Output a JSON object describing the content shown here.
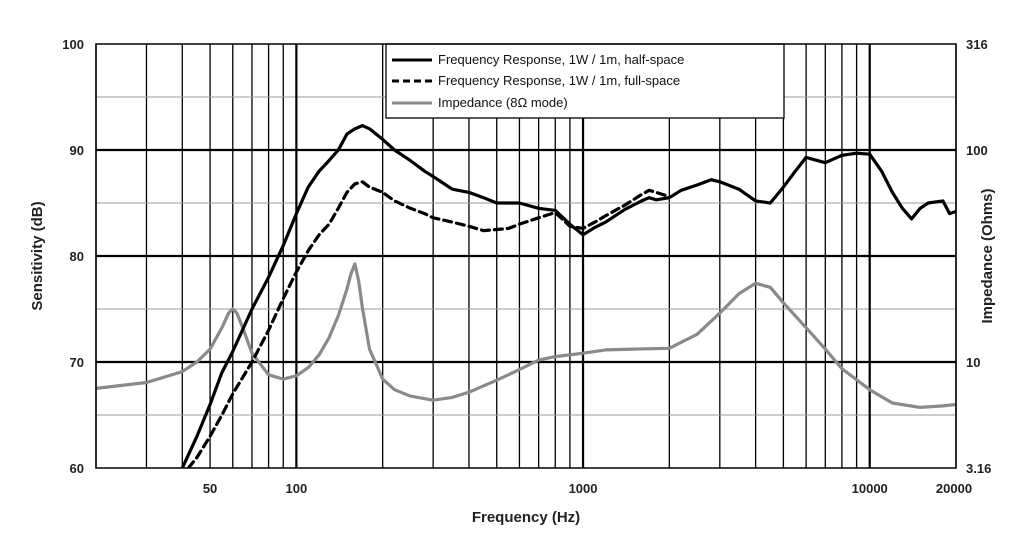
{
  "chart_data": {
    "type": "line",
    "xlabel": "Frequency (Hz)",
    "ylabel": "Sensitivity (dB)",
    "y2label": "Impedance (Ohms)",
    "xscale": "log",
    "xlim": [
      20,
      20000
    ],
    "ylim": [
      60,
      100
    ],
    "y2scale": "log",
    "y2lim": [
      3.16,
      316
    ],
    "grid": true,
    "legend_position": "top-center",
    "x_ticks": [
      "50",
      "100",
      "1000",
      "10000",
      "20000"
    ],
    "x_tick_values": [
      50,
      100,
      1000,
      10000,
      20000
    ],
    "y_ticks": [
      "60",
      "70",
      "80",
      "90",
      "100"
    ],
    "y_tick_values": [
      60,
      70,
      80,
      90,
      100
    ],
    "y2_ticks": [
      "3.16",
      "10",
      "100",
      "316"
    ],
    "y2_tick_values": [
      3.16,
      10,
      100,
      316
    ],
    "series": [
      {
        "name": "Frequency Response, 1W / 1m, half-space",
        "axis": "left",
        "style": "solid",
        "color": "#000000",
        "x": [
          40,
          45,
          50,
          55,
          60,
          70,
          80,
          90,
          100,
          110,
          120,
          130,
          140,
          150,
          160,
          170,
          180,
          200,
          220,
          250,
          280,
          300,
          350,
          400,
          450,
          500,
          550,
          600,
          700,
          800,
          900,
          1000,
          1100,
          1200,
          1400,
          1600,
          1700,
          1800,
          2000,
          2200,
          2500,
          2800,
          3000,
          3500,
          4000,
          4500,
          5000,
          5500,
          6000,
          7000,
          8000,
          9000,
          10000,
          11000,
          12000,
          13000,
          14000,
          15000,
          16000,
          18000,
          19000,
          20000
        ],
        "y": [
          60,
          63,
          66,
          69,
          71,
          75,
          78,
          81,
          84,
          86.5,
          88,
          89,
          90,
          91.5,
          92,
          92.3,
          92,
          91,
          90,
          89,
          88,
          87.5,
          86.3,
          86,
          85.5,
          85,
          85,
          85,
          84.5,
          84.3,
          83,
          82,
          82.7,
          83.2,
          84.4,
          85.2,
          85.5,
          85.3,
          85.5,
          86.2,
          86.7,
          87.2,
          87,
          86.3,
          85.2,
          85,
          86.5,
          88,
          89.3,
          88.8,
          89.5,
          89.7,
          89.6,
          88,
          86,
          84.5,
          83.5,
          84.5,
          85,
          85.2,
          84,
          84.2
        ]
      },
      {
        "name": "Frequency Response, 1W / 1m, full-space",
        "axis": "left",
        "style": "dashed",
        "color": "#000000",
        "x": [
          42,
          45,
          50,
          55,
          60,
          70,
          80,
          90,
          100,
          110,
          120,
          130,
          140,
          150,
          160,
          170,
          180,
          200,
          220,
          250,
          280,
          300,
          350,
          400,
          450,
          500,
          550,
          600,
          700,
          800,
          900,
          1000,
          1100,
          1200,
          1400,
          1600,
          1700,
          1800,
          2000
        ],
        "y": [
          60,
          61,
          63,
          65,
          67,
          70,
          73,
          76,
          78.5,
          80.5,
          82,
          83,
          84.5,
          86,
          86.8,
          87,
          86.5,
          86,
          85.2,
          84.5,
          84,
          83.6,
          83.2,
          82.8,
          82.4,
          82.5,
          82.6,
          83,
          83.6,
          84.1,
          82.8,
          82.6,
          83.2,
          83.8,
          84.8,
          85.8,
          86.2,
          86,
          85.6
        ]
      },
      {
        "name": "Impedance (8Ω mode)",
        "axis": "right",
        "style": "solid",
        "color": "#8a8a8a",
        "x": [
          20,
          30,
          40,
          45,
          50,
          55,
          58,
          60,
          62,
          65,
          70,
          80,
          90,
          100,
          110,
          120,
          130,
          140,
          150,
          155,
          160,
          165,
          170,
          180,
          200,
          220,
          250,
          300,
          350,
          400,
          500,
          600,
          700,
          800,
          1000,
          1200,
          1500,
          2000,
          2500,
          3000,
          3500,
          4000,
          4500,
          5000,
          6000,
          7000,
          8000,
          10000,
          12000,
          15000,
          18000,
          20000
        ],
        "y": [
          7.5,
          8.0,
          9.0,
          10.0,
          11.5,
          14.5,
          17.0,
          17.8,
          17.0,
          14.5,
          11.0,
          8.7,
          8.3,
          8.6,
          9.4,
          10.8,
          13.0,
          16.5,
          22.0,
          26.0,
          29.0,
          24.0,
          18.0,
          11.5,
          8.3,
          7.4,
          6.9,
          6.6,
          6.8,
          7.2,
          8.2,
          9.2,
          10.2,
          10.6,
          11.0,
          11.4,
          11.5,
          11.6,
          13.5,
          17.0,
          21.0,
          23.5,
          22.5,
          19.0,
          14.5,
          11.5,
          9.3,
          7.4,
          6.4,
          6.1,
          6.2,
          6.3
        ]
      }
    ]
  }
}
